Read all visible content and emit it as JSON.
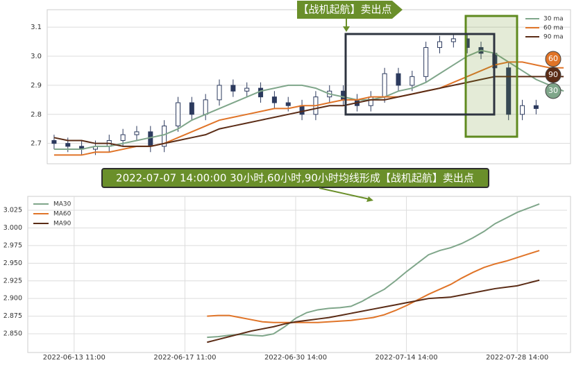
{
  "chart_data": [
    {
      "type": "candlestick",
      "annotation": "【战机起航】卖出点",
      "color": "#2c3a5e",
      "open": [
        2.71,
        2.7,
        2.69,
        2.68,
        2.69,
        2.71,
        2.73,
        2.74,
        2.69,
        2.76,
        2.84,
        2.8,
        2.85,
        2.9,
        2.88,
        2.89,
        2.86,
        2.84,
        2.83,
        2.8,
        2.86,
        2.88,
        2.85,
        2.83,
        2.86,
        2.94,
        2.9,
        2.93,
        3.03,
        3.05,
        3.06,
        3.03,
        3.01,
        2.96,
        2.8,
        2.83,
        null,
        null
      ],
      "high": [
        2.73,
        2.72,
        2.71,
        2.71,
        2.73,
        2.75,
        2.76,
        2.76,
        2.78,
        2.86,
        2.86,
        2.87,
        2.92,
        2.92,
        2.91,
        2.91,
        2.88,
        2.86,
        2.85,
        2.88,
        2.9,
        2.9,
        2.87,
        2.88,
        2.96,
        2.96,
        2.95,
        3.05,
        3.07,
        3.08,
        3.08,
        3.05,
        3.03,
        2.98,
        2.85,
        2.85,
        null,
        null
      ],
      "low": [
        2.68,
        2.67,
        2.66,
        2.66,
        2.67,
        2.69,
        2.71,
        2.67,
        2.67,
        2.74,
        2.78,
        2.78,
        2.83,
        2.86,
        2.86,
        2.84,
        2.82,
        2.81,
        2.78,
        2.78,
        2.84,
        2.83,
        2.81,
        2.81,
        2.84,
        2.88,
        2.88,
        2.91,
        3.01,
        3.03,
        3.01,
        2.99,
        2.94,
        2.78,
        2.78,
        2.8,
        null,
        null
      ],
      "close": [
        2.7,
        2.69,
        2.68,
        2.69,
        2.71,
        2.73,
        2.74,
        2.69,
        2.76,
        2.84,
        2.8,
        2.85,
        2.9,
        2.88,
        2.89,
        2.86,
        2.84,
        2.83,
        2.8,
        2.86,
        2.88,
        2.85,
        2.83,
        2.86,
        2.94,
        2.9,
        2.93,
        3.03,
        3.05,
        3.06,
        3.03,
        3.01,
        2.96,
        2.8,
        2.83,
        2.82,
        null,
        null
      ],
      "series": [
        {
          "name": "30 ma",
          "end_label": "30",
          "color": "#7fa68a",
          "values": [
            2.68,
            2.68,
            2.68,
            2.69,
            2.69,
            2.7,
            2.71,
            2.72,
            2.73,
            2.75,
            2.78,
            2.8,
            2.82,
            2.84,
            2.86,
            2.88,
            2.89,
            2.9,
            2.9,
            2.89,
            2.87,
            2.86,
            2.85,
            2.85,
            2.86,
            2.88,
            2.89,
            2.91,
            2.94,
            2.97,
            3.0,
            3.02,
            3.01,
            2.98,
            2.95,
            2.92,
            2.9,
            2.88
          ]
        },
        {
          "name": "60 ma",
          "end_label": "60",
          "color": "#e07428",
          "values": [
            2.66,
            2.66,
            2.66,
            2.67,
            2.67,
            2.68,
            2.69,
            2.69,
            2.7,
            2.72,
            2.74,
            2.76,
            2.78,
            2.79,
            2.8,
            2.81,
            2.82,
            2.82,
            2.83,
            2.83,
            2.84,
            2.85,
            2.85,
            2.86,
            2.86,
            2.86,
            2.87,
            2.88,
            2.89,
            2.91,
            2.93,
            2.95,
            2.97,
            2.98,
            2.98,
            2.97,
            2.96,
            2.96
          ]
        },
        {
          "name": "90 ma",
          "end_label": "90",
          "color": "#5b2c16",
          "values": [
            2.72,
            2.71,
            2.71,
            2.7,
            2.7,
            2.69,
            2.69,
            2.69,
            2.7,
            2.71,
            2.72,
            2.73,
            2.75,
            2.76,
            2.77,
            2.78,
            2.79,
            2.8,
            2.81,
            2.82,
            2.83,
            2.83,
            2.84,
            2.85,
            2.85,
            2.86,
            2.87,
            2.88,
            2.89,
            2.9,
            2.91,
            2.92,
            2.93,
            2.93,
            2.93,
            2.93,
            2.93,
            2.93
          ]
        }
      ],
      "ylim": [
        2.63,
        3.16
      ],
      "yticks": [
        2.7,
        2.8,
        2.9,
        {
          "value": 3,
          "label": "3.0"
        },
        3.1
      ],
      "grid": true,
      "legend": "upper right"
    },
    {
      "type": "line",
      "annotation": "2022-07-07 14:00:00 30小时,60小时,90小时均线形成【战机起航】卖出点",
      "categories": [
        null,
        null,
        null,
        null,
        "2022-06-13 11:00",
        null,
        null,
        null,
        null,
        null,
        null,
        null,
        null,
        null,
        "2022-06-17 11:00",
        null,
        null,
        null,
        null,
        null,
        null,
        null,
        null,
        null,
        "2022-06-30 14:00",
        null,
        null,
        null,
        null,
        null,
        null,
        null,
        null,
        null,
        "2022-07-14 14:00",
        null,
        null,
        null,
        null,
        null,
        null,
        null,
        null,
        null,
        "2022-07-28 14:00",
        null,
        null,
        null,
        null
      ],
      "series": [
        {
          "name": "MA30",
          "color": "#7fa68a",
          "values": [
            null,
            null,
            null,
            null,
            null,
            null,
            null,
            null,
            null,
            null,
            null,
            null,
            null,
            null,
            null,
            null,
            2.845,
            2.846,
            2.848,
            2.849,
            2.848,
            2.847,
            2.85,
            2.86,
            2.872,
            2.88,
            2.884,
            2.886,
            2.887,
            2.889,
            2.896,
            2.905,
            2.913,
            2.925,
            2.938,
            2.95,
            2.962,
            2.968,
            2.972,
            2.978,
            2.986,
            2.995,
            3.006,
            3.014,
            3.022,
            3.028,
            3.034,
            null,
            null
          ]
        },
        {
          "name": "MA60",
          "color": "#e07428",
          "values": [
            null,
            null,
            null,
            null,
            null,
            null,
            null,
            null,
            null,
            null,
            null,
            null,
            null,
            null,
            null,
            null,
            2.875,
            2.876,
            2.876,
            2.873,
            2.87,
            2.867,
            2.866,
            2.866,
            2.866,
            2.866,
            2.866,
            2.867,
            2.868,
            2.869,
            2.871,
            2.873,
            2.877,
            2.883,
            2.89,
            2.898,
            2.906,
            2.913,
            2.92,
            2.929,
            2.937,
            2.944,
            2.949,
            2.953,
            2.958,
            2.963,
            2.968,
            null,
            null
          ]
        },
        {
          "name": "MA90",
          "color": "#5b2c16",
          "values": [
            null,
            null,
            null,
            null,
            null,
            null,
            null,
            null,
            null,
            null,
            null,
            null,
            null,
            null,
            null,
            null,
            2.838,
            2.842,
            2.846,
            2.85,
            2.854,
            2.857,
            2.86,
            2.864,
            2.867,
            2.869,
            2.871,
            2.873,
            2.876,
            2.879,
            2.882,
            2.885,
            2.888,
            2.891,
            2.894,
            2.897,
            2.9,
            2.901,
            2.902,
            2.905,
            2.908,
            2.911,
            2.914,
            2.916,
            2.918,
            2.922,
            2.926,
            null,
            null
          ]
        }
      ],
      "ylim": [
        2.8235,
        3.0447
      ],
      "yticks": [
        {
          "value": 2.85,
          "label": "2.850"
        },
        {
          "value": 2.875,
          "label": "2.875"
        },
        {
          "value": 2.9,
          "label": "2.900"
        },
        {
          "value": 2.925,
          "label": "2.925"
        },
        {
          "value": 2.95,
          "label": "2.950"
        },
        {
          "value": 2.975,
          "label": "2.975"
        },
        {
          "value": 3,
          "label": "3.000"
        },
        {
          "value": 3.025,
          "label": "3.025"
        }
      ],
      "grid": true,
      "legend": "upper left"
    }
  ]
}
